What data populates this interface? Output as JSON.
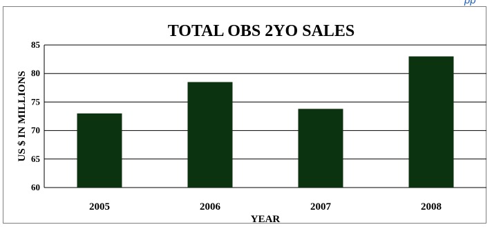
{
  "top_fragment": "pp",
  "chart_data": {
    "type": "bar",
    "title": "TOTAL OBS 2YO SALES",
    "xlabel": "YEAR",
    "ylabel": "US $ IN MILLIONS",
    "categories": [
      "2005",
      "2006",
      "2007",
      "2008"
    ],
    "values": [
      73,
      78.5,
      73.8,
      83
    ],
    "ylim": [
      60,
      85
    ],
    "yticks": [
      60,
      65,
      70,
      75,
      80,
      85
    ],
    "grid": true,
    "bar_color": "#0c3310",
    "gridline_color": "#000000"
  }
}
